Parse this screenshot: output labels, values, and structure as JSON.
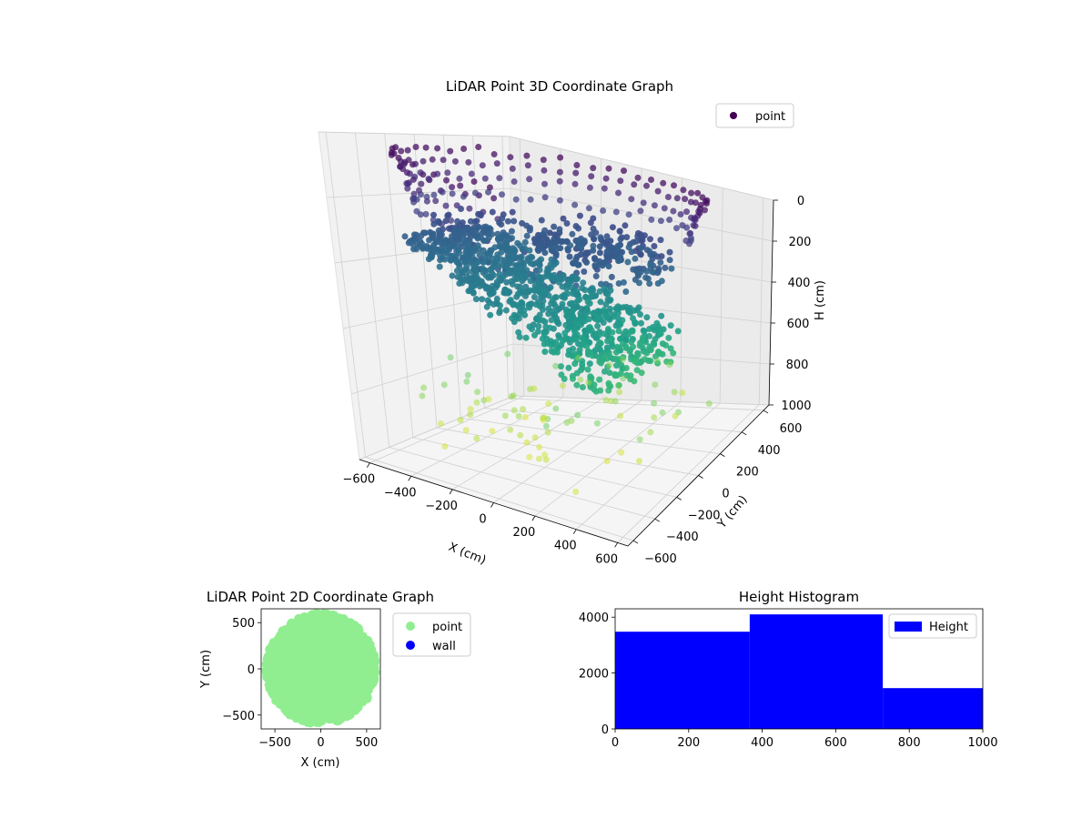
{
  "chart_data": [
    {
      "type": "scatter",
      "projection": "3d",
      "title": "LiDAR Point 3D Coordinate Graph",
      "xlabel": "X (cm)",
      "ylabel": "Y (cm)",
      "zlabel": "H (cm)",
      "xlim": [
        -650,
        650
      ],
      "ylim": [
        -650,
        650
      ],
      "zlim": [
        0,
        1000
      ],
      "z_axis_inverted": true,
      "x_ticks": [
        "−600",
        "−400",
        "−200",
        "0",
        "200",
        "400",
        "600"
      ],
      "y_ticks": [
        "−600",
        "−400",
        "−200",
        "0",
        "200",
        "400",
        "600"
      ],
      "z_ticks": [
        "0",
        "200",
        "400",
        "600",
        "800",
        "1000"
      ],
      "grid": true,
      "legend": [
        "point"
      ],
      "legend_position": "top-right",
      "colormap": "viridis",
      "series": [
        {
          "name": "point",
          "sweep_rings": [
            {
              "radius": 650,
              "height": 20
            },
            {
              "radius": 620,
              "height": 60
            },
            {
              "radius": 600,
              "height": 110
            },
            {
              "radius": 580,
              "height": 170
            }
          ],
          "dense_ring": {
            "radius": 430,
            "height": 220,
            "count": 240
          },
          "inner_ring": {
            "radius": 160,
            "height": 250,
            "count": 120
          },
          "sloped_surface": {
            "height_range": [
              300,
              700
            ],
            "count": 900
          },
          "floor_points": {
            "radius": 600,
            "height": 950,
            "count": 80
          }
        }
      ]
    },
    {
      "type": "scatter",
      "title": "LiDAR Point 2D Coordinate Graph",
      "xlabel": "X (cm)",
      "ylabel": "Y (cm)",
      "xlim": [
        -650,
        650
      ],
      "ylim": [
        -650,
        650
      ],
      "x_ticks": [
        "−500",
        "0",
        "500"
      ],
      "y_ticks": [
        "−500",
        "0",
        "500"
      ],
      "legend": [
        "point",
        "wall"
      ],
      "legend_position": "outside-right",
      "series": [
        {
          "name": "point",
          "color": "#90ee90",
          "extent_radius": 600
        },
        {
          "name": "wall",
          "color": "#0000ff",
          "count": 0
        }
      ]
    },
    {
      "type": "bar",
      "title": "Height Histogram",
      "xlabel": "",
      "ylabel": "",
      "xlim": [
        0,
        1000
      ],
      "ylim": [
        0,
        4300
      ],
      "x_ticks": [
        "0",
        "200",
        "400",
        "600",
        "800",
        "1000"
      ],
      "y_ticks": [
        "0",
        "2000",
        "4000"
      ],
      "legend": [
        "Height"
      ],
      "legend_position": "top-right",
      "bins": [
        {
          "start": 0,
          "end": 366,
          "count": 3480
        },
        {
          "start": 366,
          "end": 728,
          "count": 4100
        },
        {
          "start": 728,
          "end": 1000,
          "count": 1460
        }
      ],
      "color": "#0000ff"
    }
  ]
}
